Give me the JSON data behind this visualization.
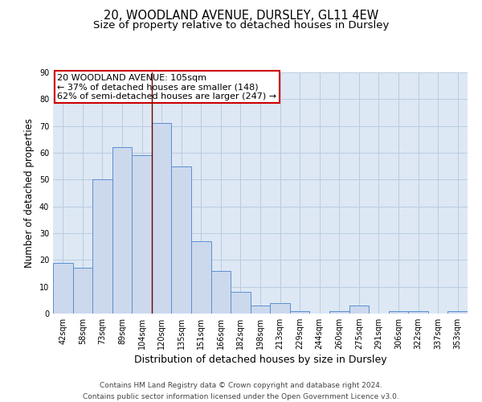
{
  "title": "20, WOODLAND AVENUE, DURSLEY, GL11 4EW",
  "subtitle": "Size of property relative to detached houses in Dursley",
  "xlabel": "Distribution of detached houses by size in Dursley",
  "ylabel": "Number of detached properties",
  "categories": [
    "42sqm",
    "58sqm",
    "73sqm",
    "89sqm",
    "104sqm",
    "120sqm",
    "135sqm",
    "151sqm",
    "166sqm",
    "182sqm",
    "198sqm",
    "213sqm",
    "229sqm",
    "244sqm",
    "260sqm",
    "275sqm",
    "291sqm",
    "306sqm",
    "322sqm",
    "337sqm",
    "353sqm"
  ],
  "values": [
    19,
    17,
    50,
    62,
    59,
    71,
    55,
    27,
    16,
    8,
    3,
    4,
    1,
    0,
    1,
    3,
    0,
    1,
    1,
    0,
    1
  ],
  "bar_color": "#ccd9ed",
  "bar_edge_color": "#5b8fcf",
  "plot_bg_color": "#dde8f4",
  "ylim": [
    0,
    90
  ],
  "yticks": [
    0,
    10,
    20,
    30,
    40,
    50,
    60,
    70,
    80,
    90
  ],
  "property_line_idx": 4,
  "property_line_color": "#6b0000",
  "annotation_text": "20 WOODLAND AVENUE: 105sqm\n← 37% of detached houses are smaller (148)\n62% of semi-detached houses are larger (247) →",
  "annotation_box_facecolor": "#ffffff",
  "annotation_box_edgecolor": "#cc0000",
  "footer1": "Contains HM Land Registry data © Crown copyright and database right 2024.",
  "footer2": "Contains public sector information licensed under the Open Government Licence v3.0.",
  "bg_color": "#ffffff",
  "grid_color": "#b8cce0",
  "title_fontsize": 10.5,
  "subtitle_fontsize": 9.5,
  "xlabel_fontsize": 9,
  "ylabel_fontsize": 8.5,
  "tick_fontsize": 7,
  "annotation_fontsize": 8,
  "footer_fontsize": 6.5
}
